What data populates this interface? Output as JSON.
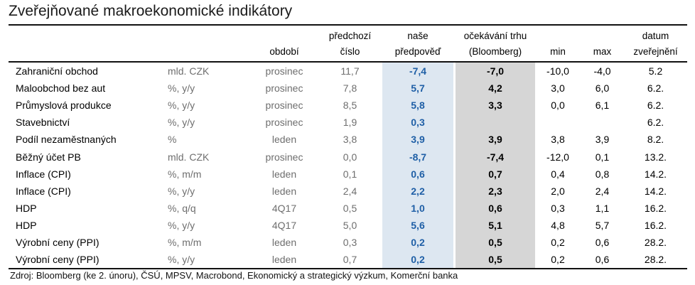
{
  "title": "Zveřejňované makroekonomické indikátory",
  "headers": {
    "period": "období",
    "prev_line1": "předchozí",
    "prev_line2": "číslo",
    "ours_line1": "naše",
    "ours_line2": "předpověď",
    "exp_line1": "očekávání trhu",
    "exp_line2": "(Bloomberg)",
    "min": "min",
    "max": "max",
    "date_line1": "datum",
    "date_line2": "zveřejnění"
  },
  "rows": [
    {
      "name": "Zahraniční obchod",
      "unit": "mld. CZK",
      "period": "prosinec",
      "prev": "11,7",
      "ours": "-7,4",
      "exp": "-7,0",
      "min": "-10,0",
      "max": "-4,0",
      "date": "5.2"
    },
    {
      "name": "Maloobchod bez aut",
      "unit": "%, y/y",
      "period": "prosinec",
      "prev": "7,8",
      "ours": "5,7",
      "exp": "4,2",
      "min": "3,0",
      "max": "6,0",
      "date": "6.2."
    },
    {
      "name": "Průmyslová produkce",
      "unit": "%, y/y",
      "period": "prosinec",
      "prev": "8,5",
      "ours": "5,8",
      "exp": "3,3",
      "min": "0,0",
      "max": "6,1",
      "date": "6.2."
    },
    {
      "name": "Stavebnictví",
      "unit": "%, y/y",
      "period": "prosinec",
      "prev": "1,9",
      "ours": "0,3",
      "exp": "",
      "min": "",
      "max": "",
      "date": "6.2."
    },
    {
      "name": "Podíl nezaměstnaných",
      "unit": "%",
      "period": "leden",
      "prev": "3,8",
      "ours": "3,9",
      "exp": "3,9",
      "min": "3,8",
      "max": "3,9",
      "date": "8.2."
    },
    {
      "name": "Běžný účet PB",
      "unit": "mld. CZK",
      "period": "prosinec",
      "prev": "0,0",
      "ours": "-8,7",
      "exp": "-7,4",
      "min": "-12,0",
      "max": "0,1",
      "date": "13.2."
    },
    {
      "name": "Inflace (CPI)",
      "unit": "%, m/m",
      "period": "leden",
      "prev": "0,1",
      "ours": "0,6",
      "exp": "0,7",
      "min": "0,4",
      "max": "0,8",
      "date": "14.2."
    },
    {
      "name": "Inflace (CPI)",
      "unit": "%, y/y",
      "period": "leden",
      "prev": "2,4",
      "ours": "2,2",
      "exp": "2,3",
      "min": "2,0",
      "max": "2,4",
      "date": "14.2."
    },
    {
      "name": "HDP",
      "unit": "%, q/q",
      "period": "4Q17",
      "prev": "0,5",
      "ours": "1,0",
      "exp": "0,6",
      "min": "0,3",
      "max": "1,1",
      "date": "16.2."
    },
    {
      "name": "HDP",
      "unit": "%, y/y",
      "period": "4Q17",
      "prev": "5,0",
      "ours": "5,6",
      "exp": "5,1",
      "min": "4,8",
      "max": "5,7",
      "date": "16.2."
    },
    {
      "name": "Výrobní ceny (PPI)",
      "unit": "%, m/m",
      "period": "leden",
      "prev": "0,3",
      "ours": "0,2",
      "exp": "0,5",
      "min": "0,2",
      "max": "0,6",
      "date": "28.2."
    },
    {
      "name": "Výrobní ceny (PPI)",
      "unit": "%, y/y",
      "period": "leden",
      "prev": "0,7",
      "ours": "0,2",
      "exp": "0,5",
      "min": "0,2",
      "max": "0,6",
      "date": "28.2."
    }
  ],
  "source": "Zdroj: Bloomberg (ke 2. únoru), ČSÚ, MPSV, Macrobond, Ekonomický a strategický výzkum, Komerční banka"
}
